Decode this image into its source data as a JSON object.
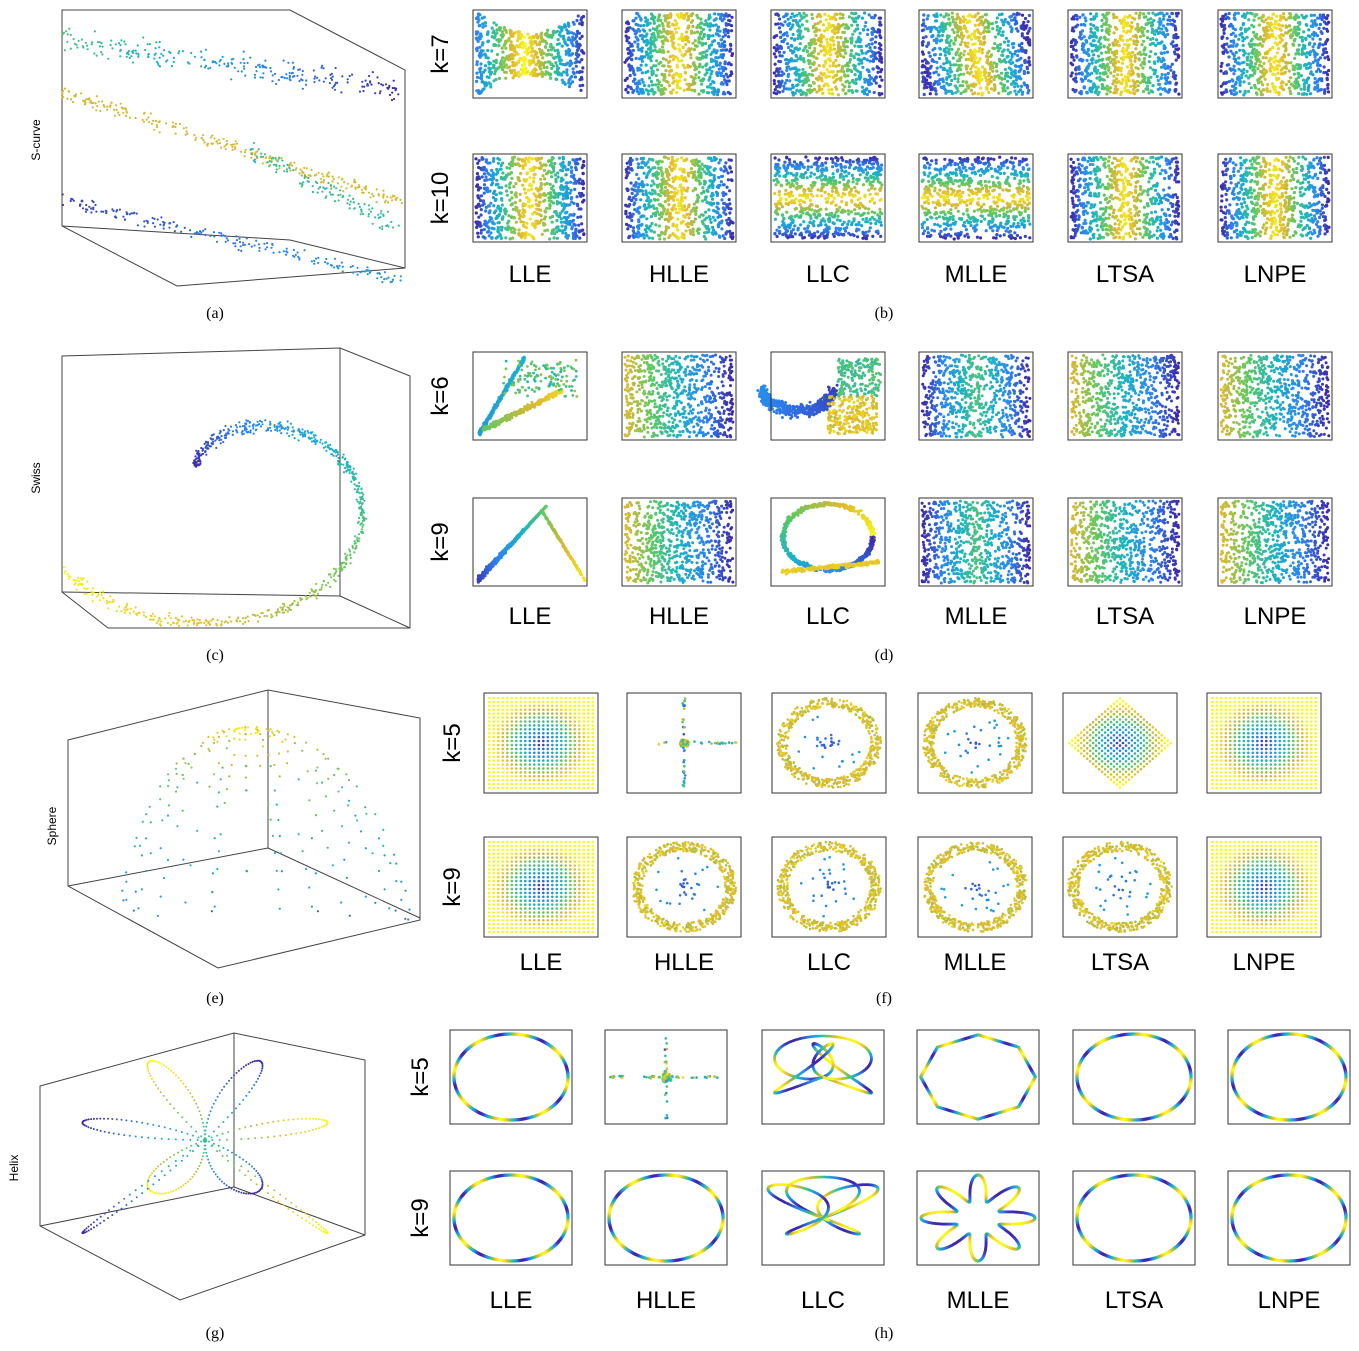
{
  "figure": {
    "rows": [
      {
        "dataset": "S-curve",
        "shape": "scurve",
        "panel_3d_label": "(a)",
        "panel_grid_label": "(b)",
        "k_values": [
          "k=7",
          "k=10"
        ],
        "methods": [
          "LLE",
          "HLLE",
          "LLC",
          "MLLE",
          "LTSA",
          "LNPE"
        ]
      },
      {
        "dataset": "Swiss",
        "shape": "swiss",
        "panel_3d_label": "(c)",
        "panel_grid_label": "(d)",
        "k_values": [
          "k=6",
          "k=9"
        ],
        "methods": [
          "LLE",
          "HLLE",
          "LLC",
          "MLLE",
          "LTSA",
          "LNPE"
        ]
      },
      {
        "dataset": "Sphere",
        "shape": "sphere",
        "panel_3d_label": "(e)",
        "panel_grid_label": "(f)",
        "k_values": [
          "k=5",
          "k=9"
        ],
        "methods": [
          "LLE",
          "HLLE",
          "LLC",
          "MLLE",
          "LTSA",
          "LNPE"
        ]
      },
      {
        "dataset": "Helix",
        "shape": "helix",
        "panel_3d_label": "(g)",
        "panel_grid_label": "(h)",
        "k_values": [
          "k=5",
          "k=9"
        ],
        "methods": [
          "LLE",
          "HLLE",
          "LLC",
          "MLLE",
          "LTSA",
          "LNPE"
        ]
      }
    ],
    "embedding_styles": {
      "scurve": [
        [
          "fan",
          "vband",
          "vband",
          "skewband",
          "vband",
          "vband"
        ],
        [
          "vband",
          "vband",
          "hband",
          "hband",
          "vband",
          "vband"
        ]
      ],
      "swiss": [
        [
          "diag",
          "grad",
          "llc6",
          "grad2",
          "grad",
          "grad"
        ],
        [
          "triangle",
          "grad",
          "loop",
          "grad2",
          "grad",
          "grad"
        ]
      ],
      "sphere": [
        [
          "radial",
          "cross",
          "ring",
          "ring",
          "diamond",
          "radial"
        ],
        [
          "radial",
          "ring",
          "ring",
          "ring",
          "ring",
          "radial"
        ]
      ],
      "helix": [
        [
          "ellipse",
          "cross",
          "tangle",
          "octagon",
          "ellipse",
          "ellipse"
        ],
        [
          "ellipse",
          "ellipse",
          "tangle2",
          "star",
          "ellipse",
          "ellipse"
        ]
      ]
    },
    "colormap": [
      "#3e26a8",
      "#2b82f0",
      "#1ab3c6",
      "#5cc863",
      "#e0b92e",
      "#f9f917"
    ]
  }
}
